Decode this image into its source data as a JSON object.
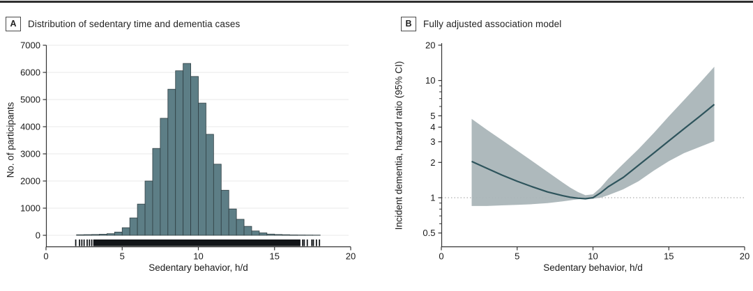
{
  "figure": {
    "panels": [
      {
        "label": "A",
        "title": "Distribution of sedentary time and dementia cases",
        "xlabel": "Sedentary behavior, h/d",
        "ylabel": "No. of participants"
      },
      {
        "label": "B",
        "title": "Fully adjusted association model",
        "xlabel": "Sedentary behavior, h/d",
        "ylabel": "Incident dementia, hazard ratio (95% CI)"
      }
    ]
  },
  "chart_data": [
    {
      "type": "bar",
      "title": "Distribution of sedentary time and dementia cases",
      "xlabel": "Sedentary behavior, h/d",
      "ylabel": "No. of participants",
      "xlim": [
        0,
        20
      ],
      "ylim": [
        0,
        7000
      ],
      "x_ticks": [
        0,
        5,
        10,
        15,
        20
      ],
      "y_ticks": [
        0,
        1000,
        2000,
        3000,
        4000,
        5000,
        6000,
        7000
      ],
      "grid": true,
      "bin_start": 2.0,
      "bin_width": 0.5,
      "counts": [
        20,
        25,
        30,
        40,
        60,
        120,
        280,
        640,
        1150,
        2000,
        3200,
        4310,
        5380,
        6060,
        6330,
        5850,
        4870,
        3720,
        2620,
        1660,
        970,
        590,
        330,
        160,
        90,
        45,
        30,
        22,
        15,
        12,
        10,
        8
      ],
      "rug": {
        "band": [
          3.1,
          16.7
        ],
        "marks": [
          1.95,
          2.2,
          2.35,
          2.5,
          2.7,
          2.85,
          3.0,
          16.85,
          16.95,
          17.15,
          17.45,
          17.55,
          17.75,
          17.95
        ]
      },
      "colors": {
        "bar_fill": "#5d7e86",
        "bar_edge": "#2f3e42",
        "grid": "#e8e8e8",
        "rug": "#121518",
        "axis": "#333333",
        "text": "#1a1a1a"
      }
    },
    {
      "type": "line",
      "title": "Fully adjusted association model",
      "xlabel": "Sedentary behavior, h/d",
      "ylabel": "Incident dementia, hazard ratio (95% CI)",
      "xlim": [
        0,
        20
      ],
      "ylim": [
        0.45,
        20
      ],
      "y_scale": "log",
      "x_ticks": [
        0,
        5,
        10,
        15,
        20
      ],
      "y_ticks_major": [
        20,
        10,
        5,
        4,
        3,
        2,
        1,
        0.5
      ],
      "y_ticks_minor": [
        9,
        8,
        7,
        6,
        0.9,
        0.8,
        0.7,
        0.6
      ],
      "reference_line": 1,
      "grid": false,
      "legend": "none",
      "series": [
        {
          "name": "hazard ratio",
          "x": [
            2,
            3,
            4,
            5,
            6,
            7,
            8,
            8.5,
            9,
            9.5,
            10,
            10.5,
            11,
            12,
            13,
            14,
            15,
            16,
            17,
            18
          ],
          "hr": [
            2.04,
            1.78,
            1.56,
            1.38,
            1.24,
            1.12,
            1.04,
            1.01,
            0.99,
            0.98,
            1.0,
            1.1,
            1.24,
            1.49,
            1.89,
            2.4,
            3.05,
            3.87,
            4.9,
            6.25
          ],
          "ci_upper": [
            4.7,
            3.8,
            3.1,
            2.52,
            2.05,
            1.66,
            1.35,
            1.22,
            1.12,
            1.05,
            1.07,
            1.22,
            1.45,
            1.95,
            2.6,
            3.55,
            4.95,
            6.8,
            9.4,
            13.1
          ],
          "ci_lower": [
            0.85,
            0.85,
            0.86,
            0.87,
            0.88,
            0.9,
            0.93,
            0.95,
            0.97,
            0.98,
            0.98,
            1.0,
            1.05,
            1.18,
            1.38,
            1.7,
            2.05,
            2.4,
            2.7,
            3.04
          ]
        }
      ],
      "colors": {
        "line": "#2e545c",
        "band": "#aab5b8",
        "reference": "#9a9a9a",
        "axis": "#333333",
        "text": "#1a1a1a"
      }
    }
  ]
}
